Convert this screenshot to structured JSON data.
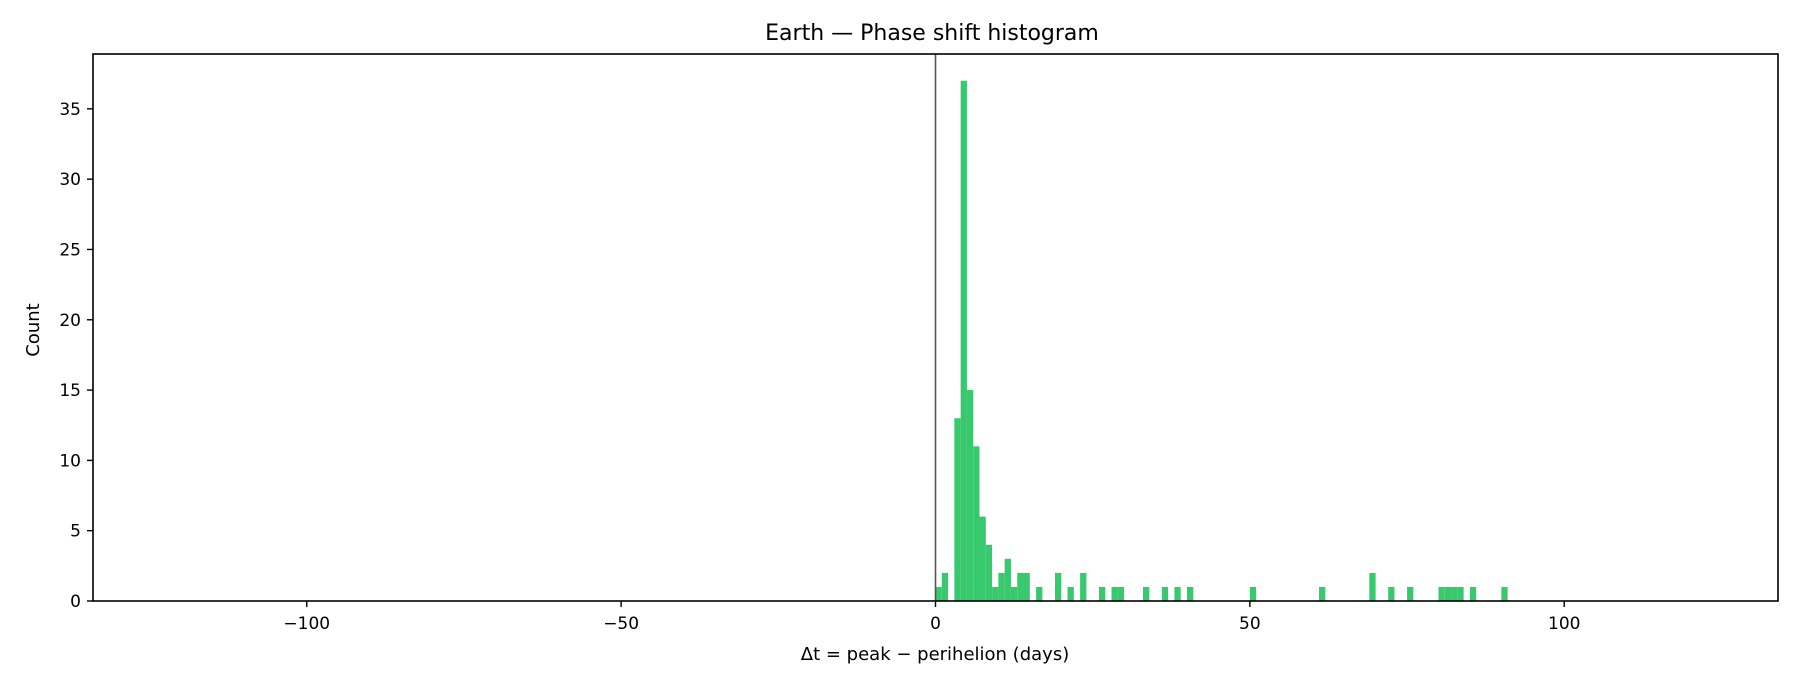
{
  "chart_data": {
    "type": "bar",
    "title": "Earth — Phase shift histogram",
    "xlabel": "Δt = peak − perihelion (days)",
    "ylabel": "Count",
    "xlim": [
      -134,
      134
    ],
    "ylim": [
      0,
      38.9
    ],
    "x_ticks": [
      -100,
      -50,
      0,
      50,
      100
    ],
    "x_tick_labels": [
      "−100",
      "−50",
      "0",
      "50",
      "100"
    ],
    "y_ticks": [
      0,
      5,
      10,
      15,
      20,
      25,
      30,
      35
    ],
    "y_tick_labels": [
      "0",
      "5",
      "10",
      "15",
      "20",
      "25",
      "30",
      "35"
    ],
    "bin_width": 1,
    "reference_line_x": 0,
    "bar_color": "#38c96e",
    "bins": [
      {
        "x": 0,
        "count": 1
      },
      {
        "x": 1,
        "count": 2
      },
      {
        "x": 3,
        "count": 13
      },
      {
        "x": 4,
        "count": 37
      },
      {
        "x": 5,
        "count": 15
      },
      {
        "x": 6,
        "count": 11
      },
      {
        "x": 7,
        "count": 6
      },
      {
        "x": 8,
        "count": 4
      },
      {
        "x": 9,
        "count": 1
      },
      {
        "x": 10,
        "count": 2
      },
      {
        "x": 11,
        "count": 3
      },
      {
        "x": 12,
        "count": 1
      },
      {
        "x": 13,
        "count": 2
      },
      {
        "x": 14,
        "count": 2
      },
      {
        "x": 16,
        "count": 1
      },
      {
        "x": 19,
        "count": 2
      },
      {
        "x": 21,
        "count": 1
      },
      {
        "x": 23,
        "count": 2
      },
      {
        "x": 26,
        "count": 1
      },
      {
        "x": 28,
        "count": 1
      },
      {
        "x": 29,
        "count": 1
      },
      {
        "x": 33,
        "count": 1
      },
      {
        "x": 36,
        "count": 1
      },
      {
        "x": 38,
        "count": 1
      },
      {
        "x": 40,
        "count": 1
      },
      {
        "x": 50,
        "count": 1
      },
      {
        "x": 61,
        "count": 1
      },
      {
        "x": 69,
        "count": 2
      },
      {
        "x": 72,
        "count": 1
      },
      {
        "x": 75,
        "count": 1
      },
      {
        "x": 80,
        "count": 1
      },
      {
        "x": 81,
        "count": 1
      },
      {
        "x": 82,
        "count": 1
      },
      {
        "x": 83,
        "count": 1
      },
      {
        "x": 85,
        "count": 1
      },
      {
        "x": 90,
        "count": 1
      }
    ]
  }
}
